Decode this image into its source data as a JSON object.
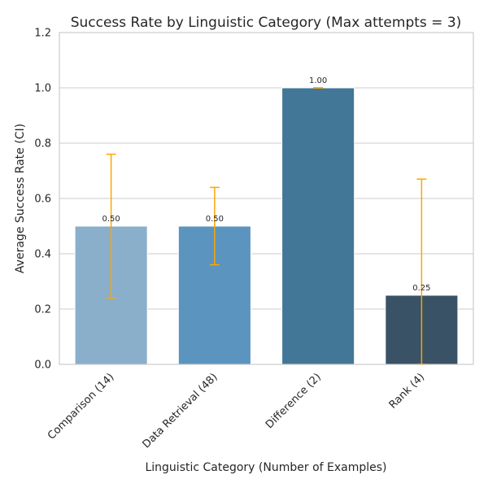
{
  "chart_data": {
    "type": "bar",
    "title": "Success Rate by Linguistic Category (Max attempts = 3)",
    "xlabel": "Linguistic Category (Number of Examples)",
    "ylabel": "Average Success Rate (CI)",
    "ylim": [
      0,
      1.2
    ],
    "yticks": [
      0.0,
      0.2,
      0.4,
      0.6,
      0.8,
      1.0,
      1.2
    ],
    "ytick_labels": [
      "0.0",
      "0.2",
      "0.4",
      "0.6",
      "0.8",
      "1.0",
      "1.2"
    ],
    "grid": "horizontal",
    "categories": [
      "Comparison (14)",
      "Data Retrieval (48)",
      "Difference (2)",
      "Rank (4)"
    ],
    "values": [
      0.5,
      0.5,
      1.0,
      0.25
    ],
    "value_labels": [
      "0.50",
      "0.50",
      "1.00",
      "0.25"
    ],
    "ci_lower": [
      0.24,
      0.36,
      1.0,
      0.0
    ],
    "ci_upper": [
      0.76,
      0.64,
      1.0,
      0.67
    ],
    "bar_colors": [
      "#89afcb",
      "#5b95bf",
      "#437797",
      "#3a5265"
    ],
    "errorbar_color": "#ffa500"
  }
}
